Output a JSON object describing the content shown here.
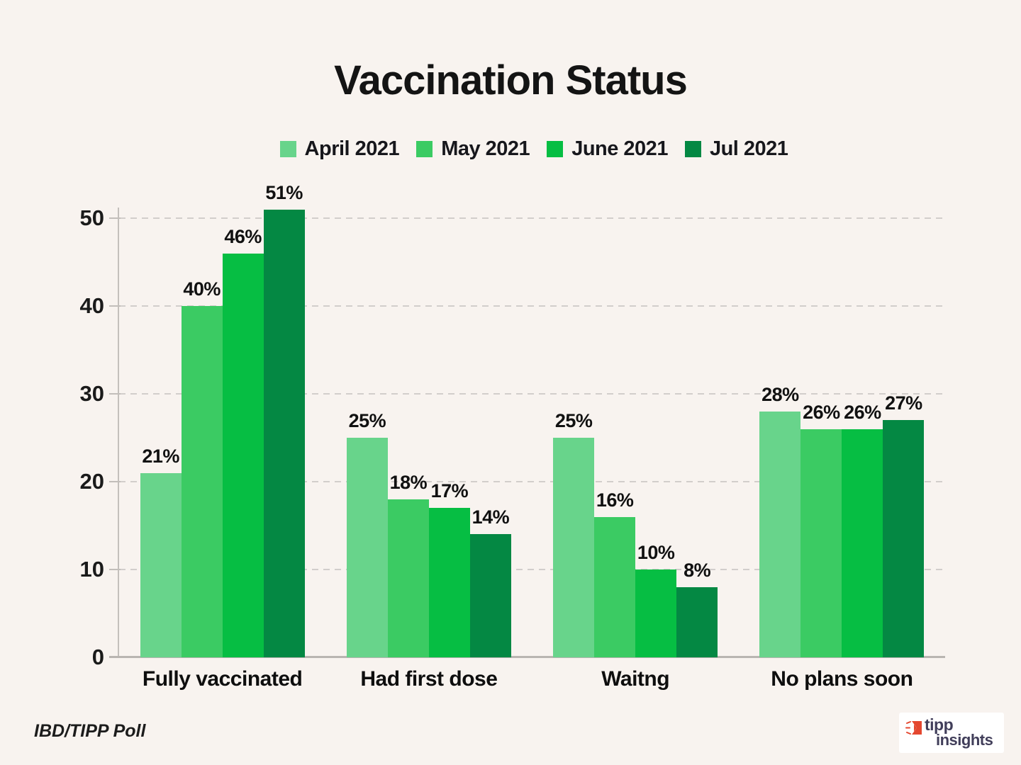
{
  "chart_data": {
    "type": "bar",
    "title": "Vaccination Status",
    "categories": [
      "Fully vaccinated",
      "Had first dose",
      "Waitng",
      "No plans soon"
    ],
    "series": [
      {
        "name": "April 2021",
        "color": "#68D48B",
        "values": [
          21,
          25,
          25,
          28
        ]
      },
      {
        "name": "May 2021",
        "color": "#3BCB63",
        "values": [
          40,
          18,
          16,
          26
        ]
      },
      {
        "name": "June 2021",
        "color": "#06BE43",
        "values": [
          46,
          17,
          10,
          26
        ]
      },
      {
        "name": "Jul 2021",
        "color": "#048843",
        "values": [
          51,
          14,
          8,
          27
        ]
      }
    ],
    "value_suffix": "%",
    "ylim": [
      0,
      53
    ],
    "yticks": [
      0,
      10,
      20,
      30,
      40,
      50
    ],
    "grid": "horizontal-dashed",
    "legend_position": "top"
  },
  "footer": {
    "source": "IBD/TIPP Poll",
    "logo": {
      "line1": "tipp",
      "line2": "insights",
      "red": "#E4472F",
      "navy": "#413E5A"
    }
  },
  "colors": {
    "background": "#F8F3EF",
    "text": "#111111",
    "grid": "#D2CECB",
    "axis": "#C2BEBA",
    "card": "#FFFFFF"
  }
}
